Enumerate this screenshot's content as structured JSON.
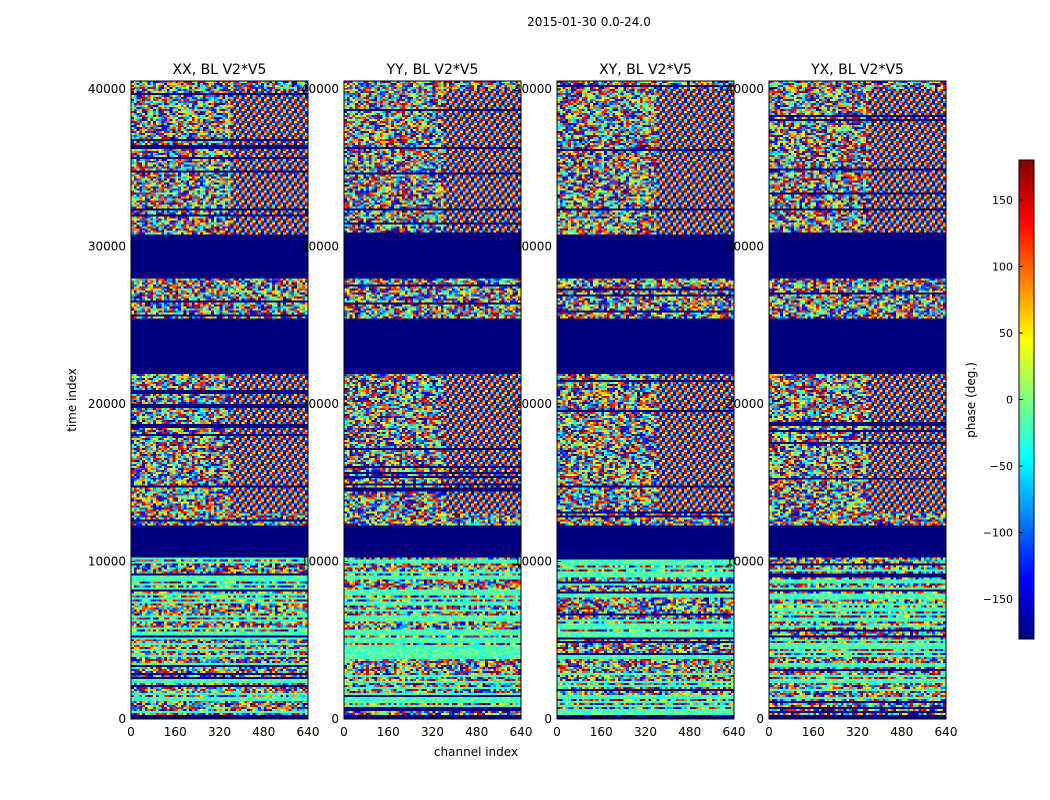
{
  "figure": {
    "suptitle": "2015-01-30 0.0-24.0"
  },
  "colors": {
    "masked": "#00007f",
    "colormap": "jet",
    "colormap_stops": [
      "#00007f",
      "#0000ff",
      "#007fff",
      "#00ffff",
      "#7fff7f",
      "#ffff00",
      "#ff7f00",
      "#ff0000",
      "#7f0000"
    ]
  },
  "chart_data": {
    "type": "heatmap",
    "title": "2015-01-30 0.0-24.0",
    "baseline": "BL V2*V5",
    "xlabel": "channel index",
    "ylabel": "time index",
    "xlim": [
      0,
      640
    ],
    "ylim": [
      0,
      40500
    ],
    "x_ticks": [
      0,
      160,
      320,
      480,
      640
    ],
    "y_ticks": [
      0,
      10000,
      20000,
      30000,
      40000
    ],
    "colorbar": {
      "label": "phase (deg.)",
      "range": [
        -180,
        180
      ],
      "ticks": [
        -150,
        -100,
        -50,
        0,
        50,
        100,
        150
      ],
      "tick_labels": [
        "−150",
        "−100",
        "−50",
        "0",
        "50",
        "100",
        "150"
      ]
    },
    "panels": [
      {
        "pol": "XX",
        "title": "XX, BL V2*V5"
      },
      {
        "pol": "YY",
        "title": "YY, BL V2*V5"
      },
      {
        "pol": "XY",
        "title": "XY, BL V2*V5"
      },
      {
        "pol": "YX",
        "title": "YX, BL V2*V5"
      }
    ],
    "masked_time_ranges": [
      [
        28000,
        30800
      ],
      [
        21900,
        25400
      ],
      [
        10300,
        12300
      ]
    ],
    "value_description": "visibility phase per (channel, time) cell; mostly noise-like phases with fringe patterns between ~13000-22000 and ~30000-40000"
  }
}
